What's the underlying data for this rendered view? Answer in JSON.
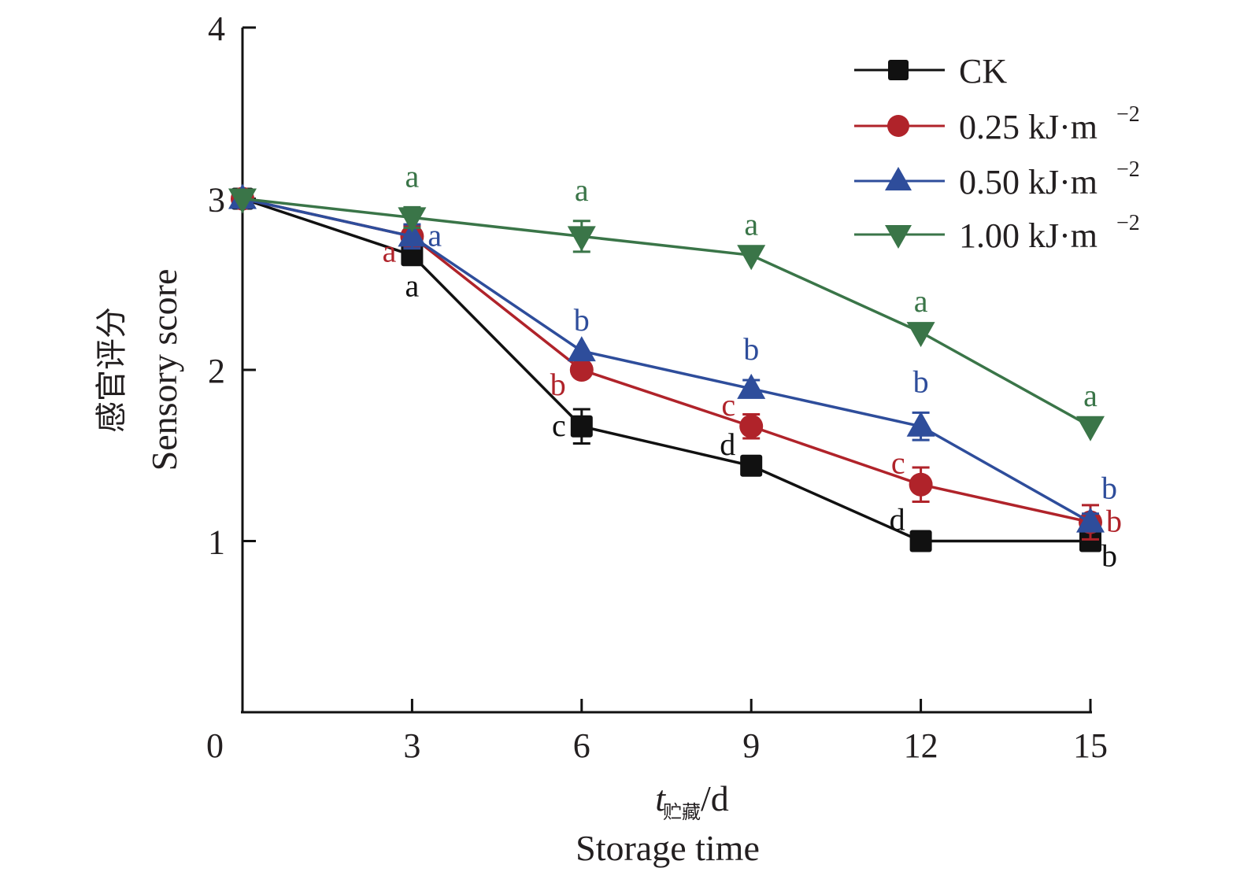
{
  "chart_data": {
    "type": "line",
    "title": "",
    "xlabel": "t贮藏/d",
    "xlabel_main": "t",
    "xlabel_sub": "贮藏",
    "xlabel_unit": "/d",
    "xlabel_en": "Storage time",
    "ylabel": "感官评分",
    "ylabel_en": "Sensory score",
    "x": [
      0,
      3,
      6,
      9,
      12,
      15
    ],
    "xlim": [
      0,
      15
    ],
    "ylim": [
      0,
      4
    ],
    "xticks": [
      "0",
      "3",
      "6",
      "9",
      "12",
      "15"
    ],
    "yticks": [
      "1",
      "2",
      "3",
      "4"
    ],
    "ytick_values": [
      1,
      2,
      3,
      4
    ],
    "grid": false,
    "legend_position": "top-right",
    "series": [
      {
        "name": "CK",
        "legend_main": "CK",
        "legend_sup": "",
        "color": "#111111",
        "marker": "square",
        "values": [
          3.0,
          2.67,
          1.67,
          1.44,
          1.0,
          1.0
        ],
        "errors": [
          0.0,
          0.05,
          0.1,
          0.0,
          0.0,
          0.0
        ],
        "sig": [
          "",
          "a",
          "c",
          "d",
          "d",
          "b"
        ],
        "sig_pos": [
          "",
          "below",
          "left",
          "left-up",
          "left-up",
          "right-down"
        ]
      },
      {
        "name": "0.25 kJ·m⁻²",
        "legend_main": "0.25 kJ·m",
        "legend_sup": "−2",
        "color": "#b0232a",
        "marker": "circle",
        "values": [
          3.0,
          2.78,
          2.0,
          1.67,
          1.33,
          1.11
        ],
        "errors": [
          0.0,
          0.06,
          0.0,
          0.07,
          0.1,
          0.1
        ],
        "sig": [
          "",
          "a",
          "b",
          "c",
          "c",
          "b"
        ],
        "sig_pos": [
          "",
          "left-down",
          "left-down",
          "left-up",
          "left-up",
          "right"
        ]
      },
      {
        "name": "0.50 kJ·m⁻²",
        "legend_main": "0.50 kJ·m",
        "legend_sup": "−2",
        "color": "#2e4d9b",
        "marker": "triangle-up",
        "values": [
          3.0,
          2.78,
          2.11,
          1.89,
          1.67,
          1.11
        ],
        "errors": [
          0.0,
          0.07,
          0.0,
          0.05,
          0.08,
          0.05
        ],
        "sig": [
          "",
          "a",
          "b",
          "b",
          "b",
          "b"
        ],
        "sig_pos": [
          "",
          "right",
          "above",
          "above",
          "above",
          "right-up"
        ]
      },
      {
        "name": "1.00 kJ·m⁻²",
        "legend_main": "1.00 kJ·m",
        "legend_sup": "−2",
        "color": "#3a7548",
        "marker": "triangle-down",
        "values": [
          3.0,
          2.89,
          2.78,
          2.67,
          2.22,
          1.67
        ],
        "errors": [
          0.0,
          0.06,
          0.09,
          0.0,
          0.0,
          0.0
        ],
        "sig": [
          "",
          "a",
          "a",
          "a",
          "a",
          "a"
        ],
        "sig_pos": [
          "",
          "above",
          "above",
          "above",
          "above",
          "above"
        ]
      }
    ]
  }
}
